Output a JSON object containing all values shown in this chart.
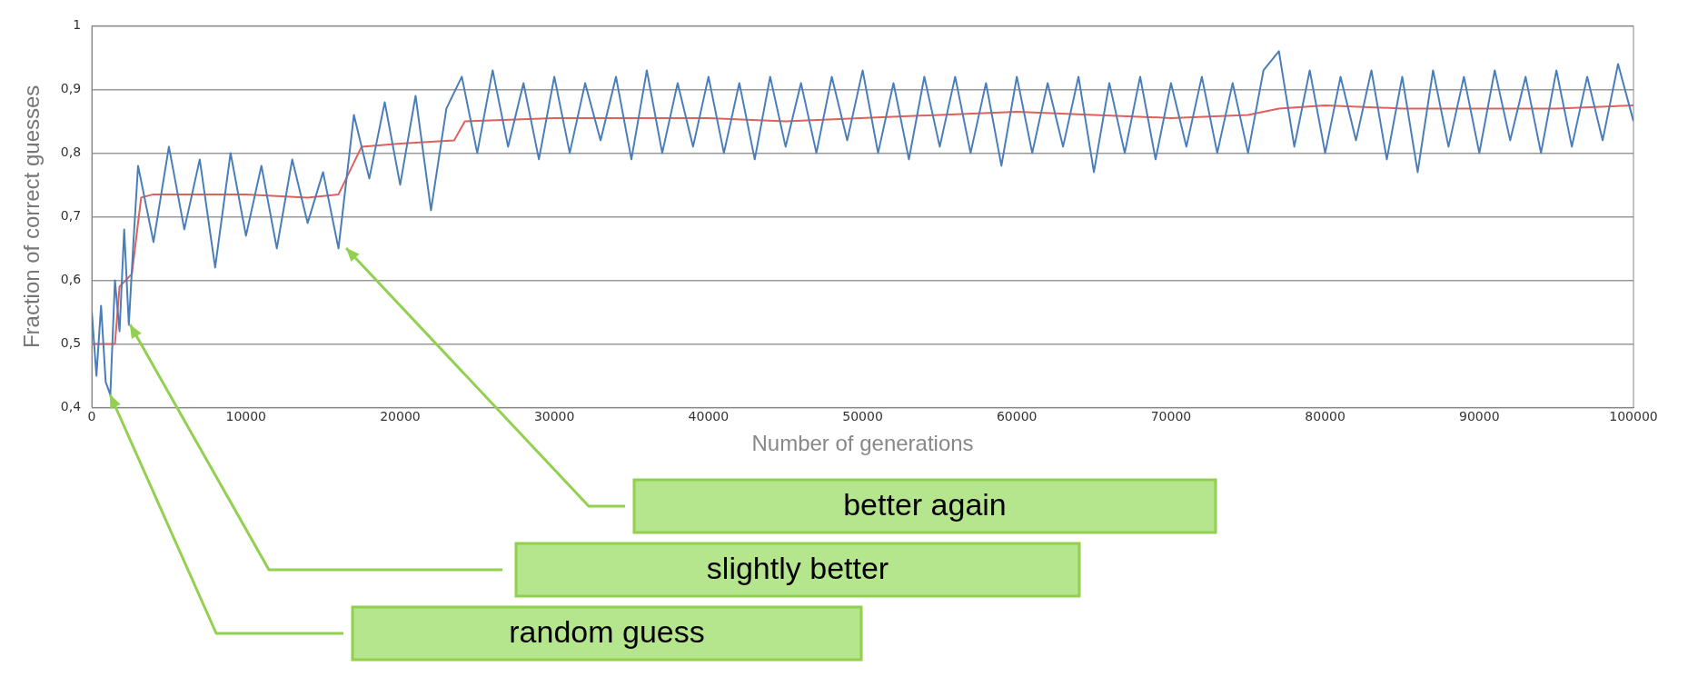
{
  "chart_data": {
    "type": "line",
    "xlabel": "Number of generations",
    "ylabel": "Fraction of correct guesses",
    "xlim": [
      0,
      100000
    ],
    "xticks": [
      0,
      10000,
      20000,
      30000,
      40000,
      50000,
      60000,
      70000,
      80000,
      90000,
      100000
    ],
    "ylim": [
      0.4,
      1
    ],
    "yticks": [
      {
        "value": 0.4,
        "label": "0,4"
      },
      {
        "value": 0.5,
        "label": "0,5"
      },
      {
        "value": 0.6,
        "label": "0,6"
      },
      {
        "value": 0.7,
        "label": "0,7"
      },
      {
        "value": 0.8,
        "label": "0,8"
      },
      {
        "value": 0.9,
        "label": "0,9"
      },
      1
    ],
    "grid": "y",
    "legend": false,
    "marker": "none",
    "line_style": "solid",
    "series": [
      {
        "color": "#4a7ebb",
        "x": [
          0,
          300,
          600,
          900,
          1200,
          1500,
          1800,
          2100,
          2400,
          2700,
          3000,
          4000,
          5000,
          6000,
          7000,
          8000,
          9000,
          10000,
          11000,
          12000,
          13000,
          14000,
          15000,
          16000,
          17000,
          18000,
          19000,
          20000,
          21000,
          22000,
          23000,
          24000,
          25000,
          26000,
          27000,
          28000,
          29000,
          30000,
          31000,
          32000,
          33000,
          34000,
          35000,
          36000,
          37000,
          38000,
          39000,
          40000,
          41000,
          42000,
          43000,
          44000,
          45000,
          46000,
          47000,
          48000,
          49000,
          50000,
          51000,
          52000,
          53000,
          54000,
          55000,
          56000,
          57000,
          58000,
          59000,
          60000,
          61000,
          62000,
          63000,
          64000,
          65000,
          66000,
          67000,
          68000,
          69000,
          70000,
          71000,
          72000,
          73000,
          74000,
          75000,
          76000,
          77000,
          78000,
          79000,
          80000,
          81000,
          82000,
          83000,
          84000,
          85000,
          86000,
          87000,
          88000,
          89000,
          90000,
          91000,
          92000,
          93000,
          94000,
          95000,
          96000,
          97000,
          98000,
          99000,
          100000
        ],
        "values": [
          0.55,
          0.45,
          0.56,
          0.44,
          0.42,
          0.6,
          0.52,
          0.68,
          0.53,
          0.66,
          0.78,
          0.66,
          0.81,
          0.68,
          0.79,
          0.62,
          0.8,
          0.67,
          0.78,
          0.65,
          0.79,
          0.69,
          0.77,
          0.65,
          0.86,
          0.76,
          0.88,
          0.75,
          0.89,
          0.71,
          0.87,
          0.92,
          0.8,
          0.93,
          0.81,
          0.91,
          0.79,
          0.92,
          0.8,
          0.91,
          0.82,
          0.92,
          0.79,
          0.93,
          0.8,
          0.91,
          0.81,
          0.92,
          0.8,
          0.91,
          0.79,
          0.92,
          0.81,
          0.91,
          0.8,
          0.92,
          0.82,
          0.93,
          0.8,
          0.91,
          0.79,
          0.92,
          0.81,
          0.92,
          0.8,
          0.91,
          0.78,
          0.92,
          0.8,
          0.91,
          0.81,
          0.92,
          0.77,
          0.91,
          0.8,
          0.92,
          0.79,
          0.91,
          0.81,
          0.92,
          0.8,
          0.91,
          0.8,
          0.93,
          0.96,
          0.81,
          0.93,
          0.8,
          0.92,
          0.82,
          0.93,
          0.79,
          0.92,
          0.77,
          0.93,
          0.81,
          0.92,
          0.8,
          0.93,
          0.82,
          0.92,
          0.8,
          0.93,
          0.81,
          0.92,
          0.82,
          0.94,
          0.85
        ]
      },
      {
        "color": "#e0605a",
        "x": [
          0,
          1500,
          1800,
          2600,
          3200,
          4000,
          10000,
          14000,
          16000,
          17500,
          20000,
          23500,
          24200,
          30000,
          40000,
          45000,
          55000,
          60000,
          65000,
          70000,
          75000,
          77000,
          80000,
          85000,
          90000,
          95000,
          100000
        ],
        "values": [
          0.5,
          0.5,
          0.59,
          0.61,
          0.73,
          0.735,
          0.735,
          0.73,
          0.735,
          0.81,
          0.815,
          0.82,
          0.85,
          0.855,
          0.855,
          0.85,
          0.86,
          0.865,
          0.86,
          0.855,
          0.86,
          0.87,
          0.875,
          0.87,
          0.87,
          0.87,
          0.875
        ]
      }
    ],
    "annotations": [
      "random guess",
      "slightly better",
      "better again"
    ]
  }
}
